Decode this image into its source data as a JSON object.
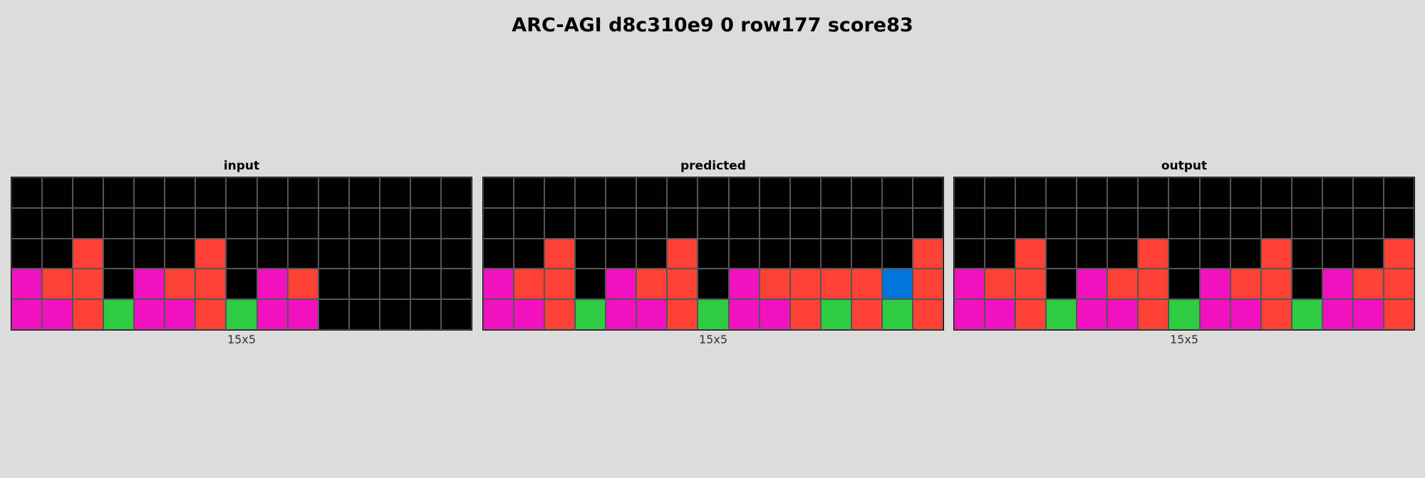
{
  "title": "ARC-AGI d8c310e9 0 row177 score83",
  "palette": {
    "0": "#000000",
    "1": "#0074d9",
    "2": "#ff4136",
    "3": "#2ecc40",
    "6": "#f012be"
  },
  "panels": [
    {
      "label": "input",
      "dims": "15x5",
      "grid": [
        [
          0,
          0,
          0,
          0,
          0,
          0,
          0,
          0,
          0,
          0,
          0,
          0,
          0,
          0,
          0
        ],
        [
          0,
          0,
          0,
          0,
          0,
          0,
          0,
          0,
          0,
          0,
          0,
          0,
          0,
          0,
          0
        ],
        [
          0,
          0,
          2,
          0,
          0,
          0,
          2,
          0,
          0,
          0,
          0,
          0,
          0,
          0,
          0
        ],
        [
          6,
          2,
          2,
          0,
          6,
          2,
          2,
          0,
          6,
          2,
          0,
          0,
          0,
          0,
          0
        ],
        [
          6,
          6,
          2,
          3,
          6,
          6,
          2,
          3,
          6,
          6,
          0,
          0,
          0,
          0,
          0
        ]
      ]
    },
    {
      "label": "predicted",
      "dims": "15x5",
      "grid": [
        [
          0,
          0,
          0,
          0,
          0,
          0,
          0,
          0,
          0,
          0,
          0,
          0,
          0,
          0,
          0
        ],
        [
          0,
          0,
          0,
          0,
          0,
          0,
          0,
          0,
          0,
          0,
          0,
          0,
          0,
          0,
          0
        ],
        [
          0,
          0,
          2,
          0,
          0,
          0,
          2,
          0,
          0,
          0,
          0,
          0,
          0,
          0,
          2
        ],
        [
          6,
          2,
          2,
          0,
          6,
          2,
          2,
          0,
          6,
          2,
          2,
          2,
          2,
          1,
          2
        ],
        [
          6,
          6,
          2,
          3,
          6,
          6,
          2,
          3,
          6,
          6,
          2,
          3,
          2,
          3,
          2
        ]
      ]
    },
    {
      "label": "output",
      "dims": "15x5",
      "grid": [
        [
          0,
          0,
          0,
          0,
          0,
          0,
          0,
          0,
          0,
          0,
          0,
          0,
          0,
          0,
          0
        ],
        [
          0,
          0,
          0,
          0,
          0,
          0,
          0,
          0,
          0,
          0,
          0,
          0,
          0,
          0,
          0
        ],
        [
          0,
          0,
          2,
          0,
          0,
          0,
          2,
          0,
          0,
          0,
          2,
          0,
          0,
          0,
          2
        ],
        [
          6,
          2,
          2,
          0,
          6,
          2,
          2,
          0,
          6,
          2,
          2,
          0,
          6,
          2,
          2
        ],
        [
          6,
          6,
          2,
          3,
          6,
          6,
          2,
          3,
          6,
          6,
          2,
          3,
          6,
          6,
          2
        ]
      ]
    }
  ]
}
